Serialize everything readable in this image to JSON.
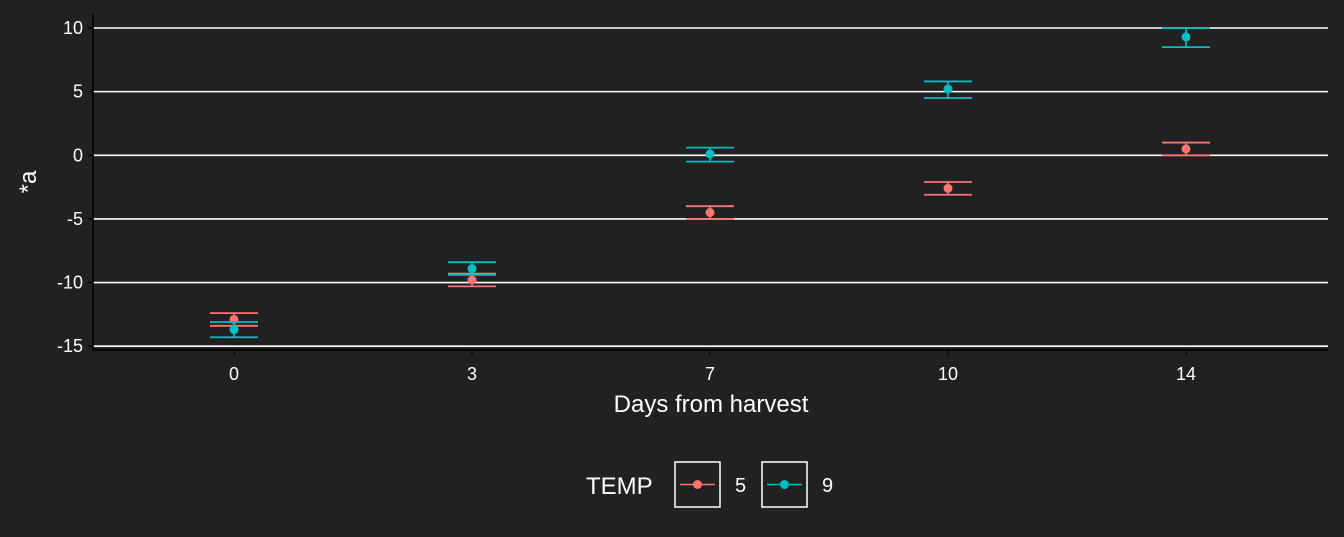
{
  "chart_data": {
    "type": "scatter",
    "title": "",
    "xlabel": "Days from harvest",
    "ylabel": "*a",
    "categories": [
      "0",
      "3",
      "7",
      "10",
      "14"
    ],
    "yticks": [
      10,
      5,
      0,
      -5,
      -10,
      -15
    ],
    "ylim": [
      -15.3,
      11.1
    ],
    "grid": true,
    "legend": {
      "title": "TEMP",
      "position": "bottom"
    },
    "series": [
      {
        "name": "5",
        "color": "#F8766D",
        "values": [
          -12.9,
          -9.8,
          -4.5,
          -2.6,
          0.5
        ],
        "lower": [
          -13.4,
          -10.3,
          -5.0,
          -3.1,
          0.0
        ],
        "upper": [
          -12.4,
          -9.3,
          -4.0,
          -2.1,
          1.0
        ]
      },
      {
        "name": "9",
        "color": "#00BFC4",
        "values": [
          -13.7,
          -8.9,
          0.1,
          5.2,
          9.3
        ],
        "lower": [
          -14.3,
          -9.4,
          -0.5,
          4.5,
          8.5
        ],
        "upper": [
          -13.1,
          -8.4,
          0.6,
          5.8,
          10.0
        ]
      }
    ]
  }
}
